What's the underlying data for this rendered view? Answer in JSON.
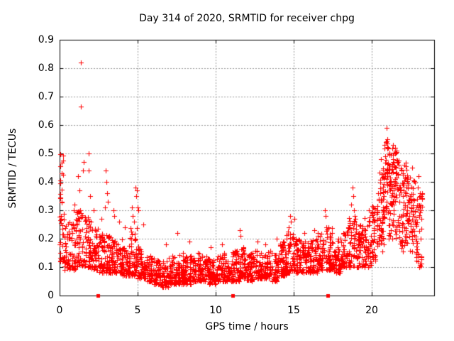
{
  "chart_data": {
    "type": "scatter",
    "title": "Day 314 of 2020, SRMTID for receiver chpg",
    "xlabel": "GPS time / hours",
    "ylabel": "SRMTID / TECUs",
    "xlim": [
      0,
      24
    ],
    "ylim": [
      0,
      0.9
    ],
    "xtick_labels": [
      "0",
      "5",
      "10",
      "15",
      "20"
    ],
    "ytick_labels": [
      "0",
      "0.1",
      "0.2",
      "0.3",
      "0.4",
      "0.5",
      "0.6",
      "0.7",
      "0.8",
      "0.9"
    ],
    "grid": true,
    "legend": "none",
    "marker": "plus",
    "marker_size_px": 7,
    "point_color": "#ff0000",
    "grid_color": "#999999",
    "frame_color": "#000000",
    "background": "#ffffff",
    "seed": 2020314,
    "baseline_markers": {
      "marker": "filled-square",
      "y": 0,
      "x": [
        2.45,
        11.1,
        17.2
      ]
    },
    "outliers": [
      [
        1.38,
        0.82
      ],
      [
        1.35,
        0.665
      ]
    ],
    "spike_points": [
      [
        1.85,
        0.5
      ],
      [
        1.88,
        0.44
      ],
      [
        1.55,
        0.47
      ],
      [
        1.5,
        0.44
      ],
      [
        1.2,
        0.42
      ],
      [
        1.25,
        0.37
      ],
      [
        1.95,
        0.35
      ],
      [
        0.95,
        0.32
      ],
      [
        0.9,
        0.3
      ],
      [
        2.2,
        0.3
      ],
      [
        2.7,
        0.27
      ],
      [
        2.95,
        0.44
      ],
      [
        3.0,
        0.4
      ],
      [
        3.05,
        0.36
      ],
      [
        3.1,
        0.33
      ],
      [
        2.9,
        0.31
      ],
      [
        3.45,
        0.3
      ],
      [
        3.5,
        0.28
      ],
      [
        3.8,
        0.26
      ],
      [
        4.2,
        0.24
      ],
      [
        4.65,
        0.31
      ],
      [
        4.7,
        0.28
      ],
      [
        4.75,
        0.26
      ],
      [
        4.85,
        0.38
      ],
      [
        4.9,
        0.35
      ],
      [
        4.95,
        0.37
      ],
      [
        5.0,
        0.31
      ],
      [
        5.05,
        0.3
      ],
      [
        5.35,
        0.25
      ],
      [
        6.8,
        0.18
      ],
      [
        7.55,
        0.22
      ],
      [
        8.3,
        0.19
      ],
      [
        9.7,
        0.17
      ],
      [
        10.4,
        0.18
      ],
      [
        11.55,
        0.23
      ],
      [
        11.6,
        0.21
      ],
      [
        12.7,
        0.19
      ],
      [
        13.2,
        0.18
      ],
      [
        13.9,
        0.2
      ],
      [
        14.7,
        0.24
      ],
      [
        14.75,
        0.28
      ],
      [
        14.8,
        0.26
      ],
      [
        15.05,
        0.27
      ],
      [
        15.7,
        0.22
      ],
      [
        16.3,
        0.23
      ],
      [
        17.0,
        0.3
      ],
      [
        17.05,
        0.28
      ],
      [
        18.7,
        0.32
      ],
      [
        18.75,
        0.38
      ],
      [
        18.8,
        0.35
      ],
      [
        18.85,
        0.3
      ],
      [
        19.8,
        0.3
      ],
      [
        20.6,
        0.48
      ],
      [
        20.9,
        0.54
      ],
      [
        20.95,
        0.59
      ],
      [
        21.0,
        0.55
      ],
      [
        21.05,
        0.52
      ],
      [
        21.35,
        0.53
      ],
      [
        21.5,
        0.5
      ],
      [
        21.7,
        0.47
      ],
      [
        22.1,
        0.46
      ],
      [
        22.6,
        0.45
      ],
      [
        22.95,
        0.38
      ],
      [
        23.0,
        0.42
      ],
      [
        23.1,
        0.35
      ],
      [
        23.15,
        0.3
      ],
      [
        23.2,
        0.27
      ]
    ],
    "density_bands": [
      [
        0.0,
        0.25,
        0.38,
        0.51,
        9,
        1.0
      ],
      [
        0.0,
        0.2,
        0.3,
        0.38,
        5,
        1.0
      ],
      [
        0.0,
        0.3,
        0.12,
        0.3,
        22,
        1.4
      ],
      [
        0.3,
        1.0,
        0.09,
        0.26,
        60,
        1.5
      ],
      [
        1.0,
        1.5,
        0.1,
        0.3,
        45,
        1.5
      ],
      [
        1.5,
        2.0,
        0.1,
        0.28,
        45,
        1.5
      ],
      [
        2.0,
        2.5,
        0.09,
        0.24,
        45,
        1.5
      ],
      [
        2.5,
        3.0,
        0.08,
        0.22,
        45,
        1.5
      ],
      [
        3.0,
        3.5,
        0.08,
        0.22,
        45,
        1.5
      ],
      [
        3.5,
        4.0,
        0.08,
        0.2,
        45,
        1.5
      ],
      [
        4.0,
        4.5,
        0.07,
        0.18,
        45,
        1.5
      ],
      [
        4.5,
        5.0,
        0.07,
        0.24,
        45,
        1.5
      ],
      [
        5.0,
        5.5,
        0.06,
        0.18,
        42,
        1.6
      ],
      [
        5.5,
        6.0,
        0.05,
        0.14,
        42,
        1.6
      ],
      [
        6.0,
        6.5,
        0.04,
        0.13,
        44,
        1.6
      ],
      [
        6.5,
        7.0,
        0.03,
        0.12,
        44,
        1.6
      ],
      [
        7.0,
        7.5,
        0.04,
        0.14,
        44,
        1.6
      ],
      [
        7.5,
        8.0,
        0.04,
        0.15,
        44,
        1.6
      ],
      [
        8.0,
        8.5,
        0.04,
        0.14,
        44,
        1.6
      ],
      [
        8.5,
        9.0,
        0.05,
        0.15,
        42,
        1.6
      ],
      [
        9.0,
        9.5,
        0.05,
        0.14,
        42,
        1.6
      ],
      [
        9.5,
        10.0,
        0.04,
        0.13,
        42,
        1.6
      ],
      [
        10.0,
        10.5,
        0.05,
        0.14,
        42,
        1.6
      ],
      [
        10.5,
        11.0,
        0.05,
        0.15,
        42,
        1.6
      ],
      [
        11.0,
        11.5,
        0.05,
        0.16,
        44,
        1.6
      ],
      [
        11.5,
        12.0,
        0.06,
        0.17,
        44,
        1.6
      ],
      [
        12.0,
        12.5,
        0.05,
        0.15,
        42,
        1.6
      ],
      [
        12.5,
        13.0,
        0.06,
        0.16,
        42,
        1.6
      ],
      [
        13.0,
        13.5,
        0.06,
        0.16,
        42,
        1.6
      ],
      [
        13.5,
        14.0,
        0.05,
        0.15,
        42,
        1.6
      ],
      [
        14.0,
        14.5,
        0.07,
        0.19,
        42,
        1.5
      ],
      [
        14.5,
        15.0,
        0.08,
        0.24,
        42,
        1.5
      ],
      [
        15.0,
        15.5,
        0.08,
        0.2,
        42,
        1.5
      ],
      [
        15.5,
        16.0,
        0.08,
        0.19,
        42,
        1.5
      ],
      [
        16.0,
        16.5,
        0.08,
        0.2,
        42,
        1.5
      ],
      [
        16.5,
        17.0,
        0.09,
        0.22,
        42,
        1.5
      ],
      [
        17.0,
        17.5,
        0.09,
        0.24,
        42,
        1.5
      ],
      [
        17.5,
        18.0,
        0.08,
        0.2,
        42,
        1.5
      ],
      [
        18.0,
        18.5,
        0.1,
        0.23,
        42,
        1.4
      ],
      [
        18.5,
        19.0,
        0.1,
        0.28,
        42,
        1.4
      ],
      [
        19.0,
        19.5,
        0.1,
        0.25,
        42,
        1.4
      ],
      [
        19.5,
        20.0,
        0.1,
        0.28,
        42,
        1.4
      ],
      [
        20.0,
        20.4,
        0.12,
        0.32,
        36,
        1.2
      ],
      [
        20.4,
        20.8,
        0.15,
        0.45,
        46,
        1.0
      ],
      [
        20.8,
        21.3,
        0.18,
        0.55,
        58,
        0.8
      ],
      [
        21.3,
        21.8,
        0.2,
        0.52,
        58,
        0.8
      ],
      [
        21.8,
        22.3,
        0.15,
        0.48,
        52,
        0.9
      ],
      [
        22.3,
        22.8,
        0.15,
        0.42,
        46,
        0.9
      ],
      [
        22.8,
        23.25,
        0.1,
        0.36,
        36,
        1.0
      ]
    ]
  }
}
